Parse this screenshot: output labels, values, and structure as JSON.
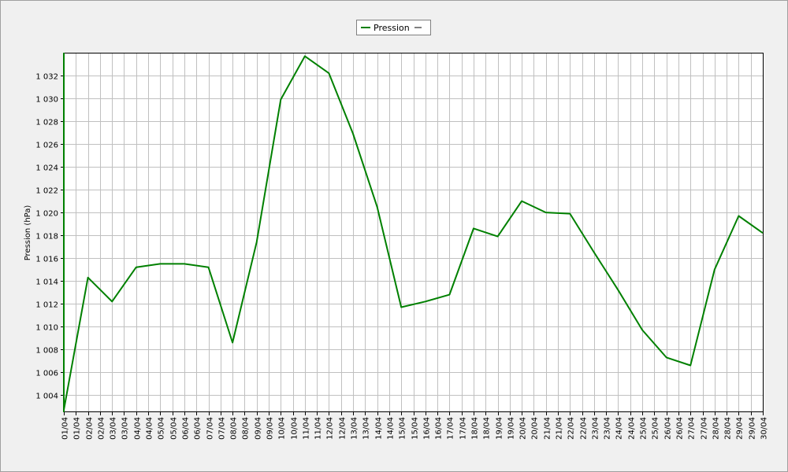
{
  "chart_data": {
    "type": "line",
    "title": "",
    "xlabel": "",
    "ylabel": "Pression (hPa)",
    "ylim": [
      1002.5,
      1034
    ],
    "yticks": [
      1004,
      1006,
      1008,
      1010,
      1012,
      1014,
      1016,
      1018,
      1020,
      1022,
      1024,
      1026,
      1028,
      1030,
      1032
    ],
    "ytick_labels": [
      "1 004",
      "1 006",
      "1 008",
      "1 010",
      "1 012",
      "1 014",
      "1 016",
      "1 018",
      "1 020",
      "1 022",
      "1 024",
      "1 026",
      "1 028",
      "1 030",
      "1 032"
    ],
    "xtick_labels": [
      "01/04",
      "01/04",
      "02/04",
      "02/04",
      "03/04",
      "03/04",
      "04/04",
      "04/04",
      "05/04",
      "05/04",
      "06/04",
      "06/04",
      "07/04",
      "07/04",
      "08/04",
      "08/04",
      "09/04",
      "09/04",
      "10/04",
      "10/04",
      "11/04",
      "11/04",
      "12/04",
      "12/04",
      "13/04",
      "13/04",
      "14/04",
      "14/04",
      "15/04",
      "15/04",
      "16/04",
      "16/04",
      "17/04",
      "17/04",
      "18/04",
      "18/04",
      "19/04",
      "19/04",
      "20/04",
      "20/04",
      "21/04",
      "21/04",
      "22/04",
      "22/04",
      "23/04",
      "23/04",
      "24/04",
      "24/04",
      "25/04",
      "25/04",
      "26/04",
      "26/04",
      "27/04",
      "27/04",
      "28/04",
      "28/04",
      "29/04",
      "29/04",
      "30/04"
    ],
    "grid": true,
    "legend_position": "top-center",
    "series": [
      {
        "name": "Pression",
        "color": "#008000",
        "x": [
          "01/04",
          "02/04",
          "03/04",
          "04/04",
          "05/04",
          "06/04",
          "07/04",
          "08/04",
          "09/04",
          "10/04",
          "11/04",
          "12/04",
          "13/04",
          "14/04",
          "15/04",
          "16/04",
          "17/04",
          "18/04",
          "19/04",
          "20/04",
          "21/04",
          "22/04",
          "23/04",
          "24/04",
          "25/04",
          "26/04",
          "27/04",
          "28/04",
          "29/04",
          "30/04"
        ],
        "values": [
          1002.7,
          1014.3,
          1012.2,
          1015.2,
          1015.5,
          1015.5,
          1015.2,
          1008.6,
          1017.4,
          1029.9,
          1033.7,
          1032.2,
          1026.9,
          1020.5,
          1011.7,
          1012.2,
          1012.8,
          1018.6,
          1017.9,
          1021.0,
          1020.0,
          1019.9,
          1016.5,
          1013.2,
          1009.7,
          1007.3,
          1006.6,
          1015.0,
          1019.7,
          1018.2
        ]
      }
    ]
  }
}
